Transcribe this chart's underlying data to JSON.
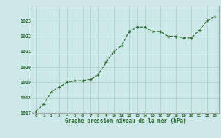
{
  "x": [
    0,
    1,
    2,
    3,
    4,
    5,
    6,
    7,
    8,
    9,
    10,
    11,
    12,
    13,
    14,
    15,
    16,
    17,
    18,
    19,
    20,
    21,
    22,
    23
  ],
  "y": [
    1017.1,
    1017.6,
    1018.4,
    1018.7,
    1019.0,
    1019.1,
    1019.1,
    1019.2,
    1019.5,
    1020.3,
    1021.0,
    1021.4,
    1022.3,
    1022.6,
    1022.6,
    1022.3,
    1022.3,
    1022.0,
    1022.0,
    1021.9,
    1021.9,
    1022.4,
    1023.0,
    1023.3
  ],
  "ylim": [
    1017,
    1024
  ],
  "yticks": [
    1017,
    1018,
    1019,
    1020,
    1021,
    1022,
    1023
  ],
  "xticks": [
    0,
    1,
    2,
    3,
    4,
    5,
    6,
    7,
    8,
    9,
    10,
    11,
    12,
    13,
    14,
    15,
    16,
    17,
    18,
    19,
    20,
    21,
    22,
    23
  ],
  "xlabel": "Graphe pression niveau de la mer (hPa)",
  "line_color": "#2d6a2d",
  "marker": "+",
  "marker_color": "#2d6a2d",
  "bg_color": "#cce8e8",
  "grid_color": "#aacccc",
  "tick_color": "#2d6a2d",
  "label_color": "#2d6a2d"
}
